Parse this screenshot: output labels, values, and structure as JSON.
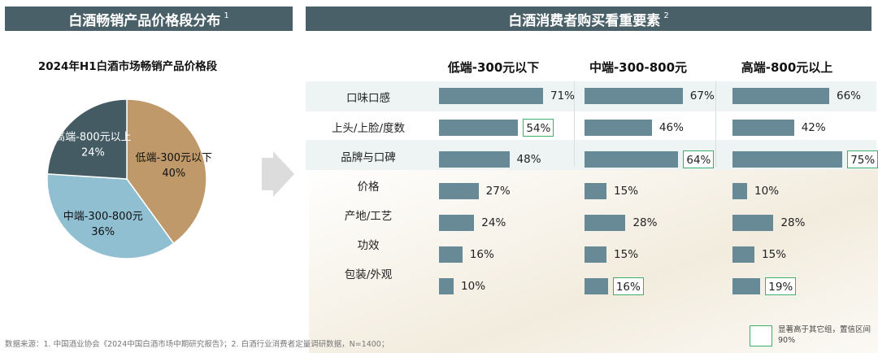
{
  "left_header": {
    "title": "白酒畅销产品价格段分布",
    "note": "1"
  },
  "right_header": {
    "title": "白酒消费者购买看重要素",
    "note": "2"
  },
  "footer": {
    "source": "数据来源：1. 中国酒业协会《2024中国白酒市场中期研究报告》；2. 白酒行业消费者定量调研数据，N=1400；"
  },
  "legend": {
    "text": "显著高于其它组，置信区间90%",
    "color": "#3db06b"
  },
  "colors": {
    "header": "#4a6068",
    "bar": "#678a96",
    "highlight": "#3db06b"
  },
  "chart_data": [
    {
      "type": "pie",
      "title": "2024年H1白酒市场畅销产品价格段",
      "slices": [
        {
          "label": "低端-300元以下",
          "value": 40,
          "value_label": "40%",
          "color": "#bf996a"
        },
        {
          "label": "中端-300-800元",
          "value": 36,
          "value_label": "36%",
          "color": "#8fbfd1"
        },
        {
          "label": "高端-800元以上",
          "value": 24,
          "value_label": "24%",
          "color": "#445b63"
        }
      ]
    },
    {
      "type": "bar",
      "orientation": "horizontal",
      "categories": [
        "口味口感",
        "上头/上脸/度数",
        "品牌与口碑",
        "价格",
        "产地/工艺",
        "功效",
        "包装/外观"
      ],
      "xlim": [
        0,
        100
      ],
      "series": [
        {
          "name": "低端-300元以下",
          "values": [
            71,
            54,
            48,
            27,
            24,
            16,
            10
          ],
          "value_labels": [
            "71%",
            "54%",
            "48%",
            "27%",
            "24%",
            "16%",
            "10%"
          ],
          "highlighted": [
            false,
            true,
            false,
            false,
            false,
            false,
            false
          ]
        },
        {
          "name": "中端-300-800元",
          "values": [
            67,
            46,
            64,
            15,
            28,
            15,
            16
          ],
          "value_labels": [
            "67%",
            "46%",
            "64%",
            "15%",
            "28%",
            "15%",
            "16%"
          ],
          "highlighted": [
            false,
            false,
            true,
            false,
            false,
            false,
            true
          ]
        },
        {
          "name": "高端-800元以上",
          "values": [
            66,
            42,
            75,
            10,
            28,
            15,
            19
          ],
          "value_labels": [
            "66%",
            "42%",
            "75%",
            "10%",
            "28%",
            "15%",
            "19%"
          ],
          "highlighted": [
            false,
            false,
            true,
            false,
            false,
            false,
            true
          ]
        }
      ]
    }
  ]
}
